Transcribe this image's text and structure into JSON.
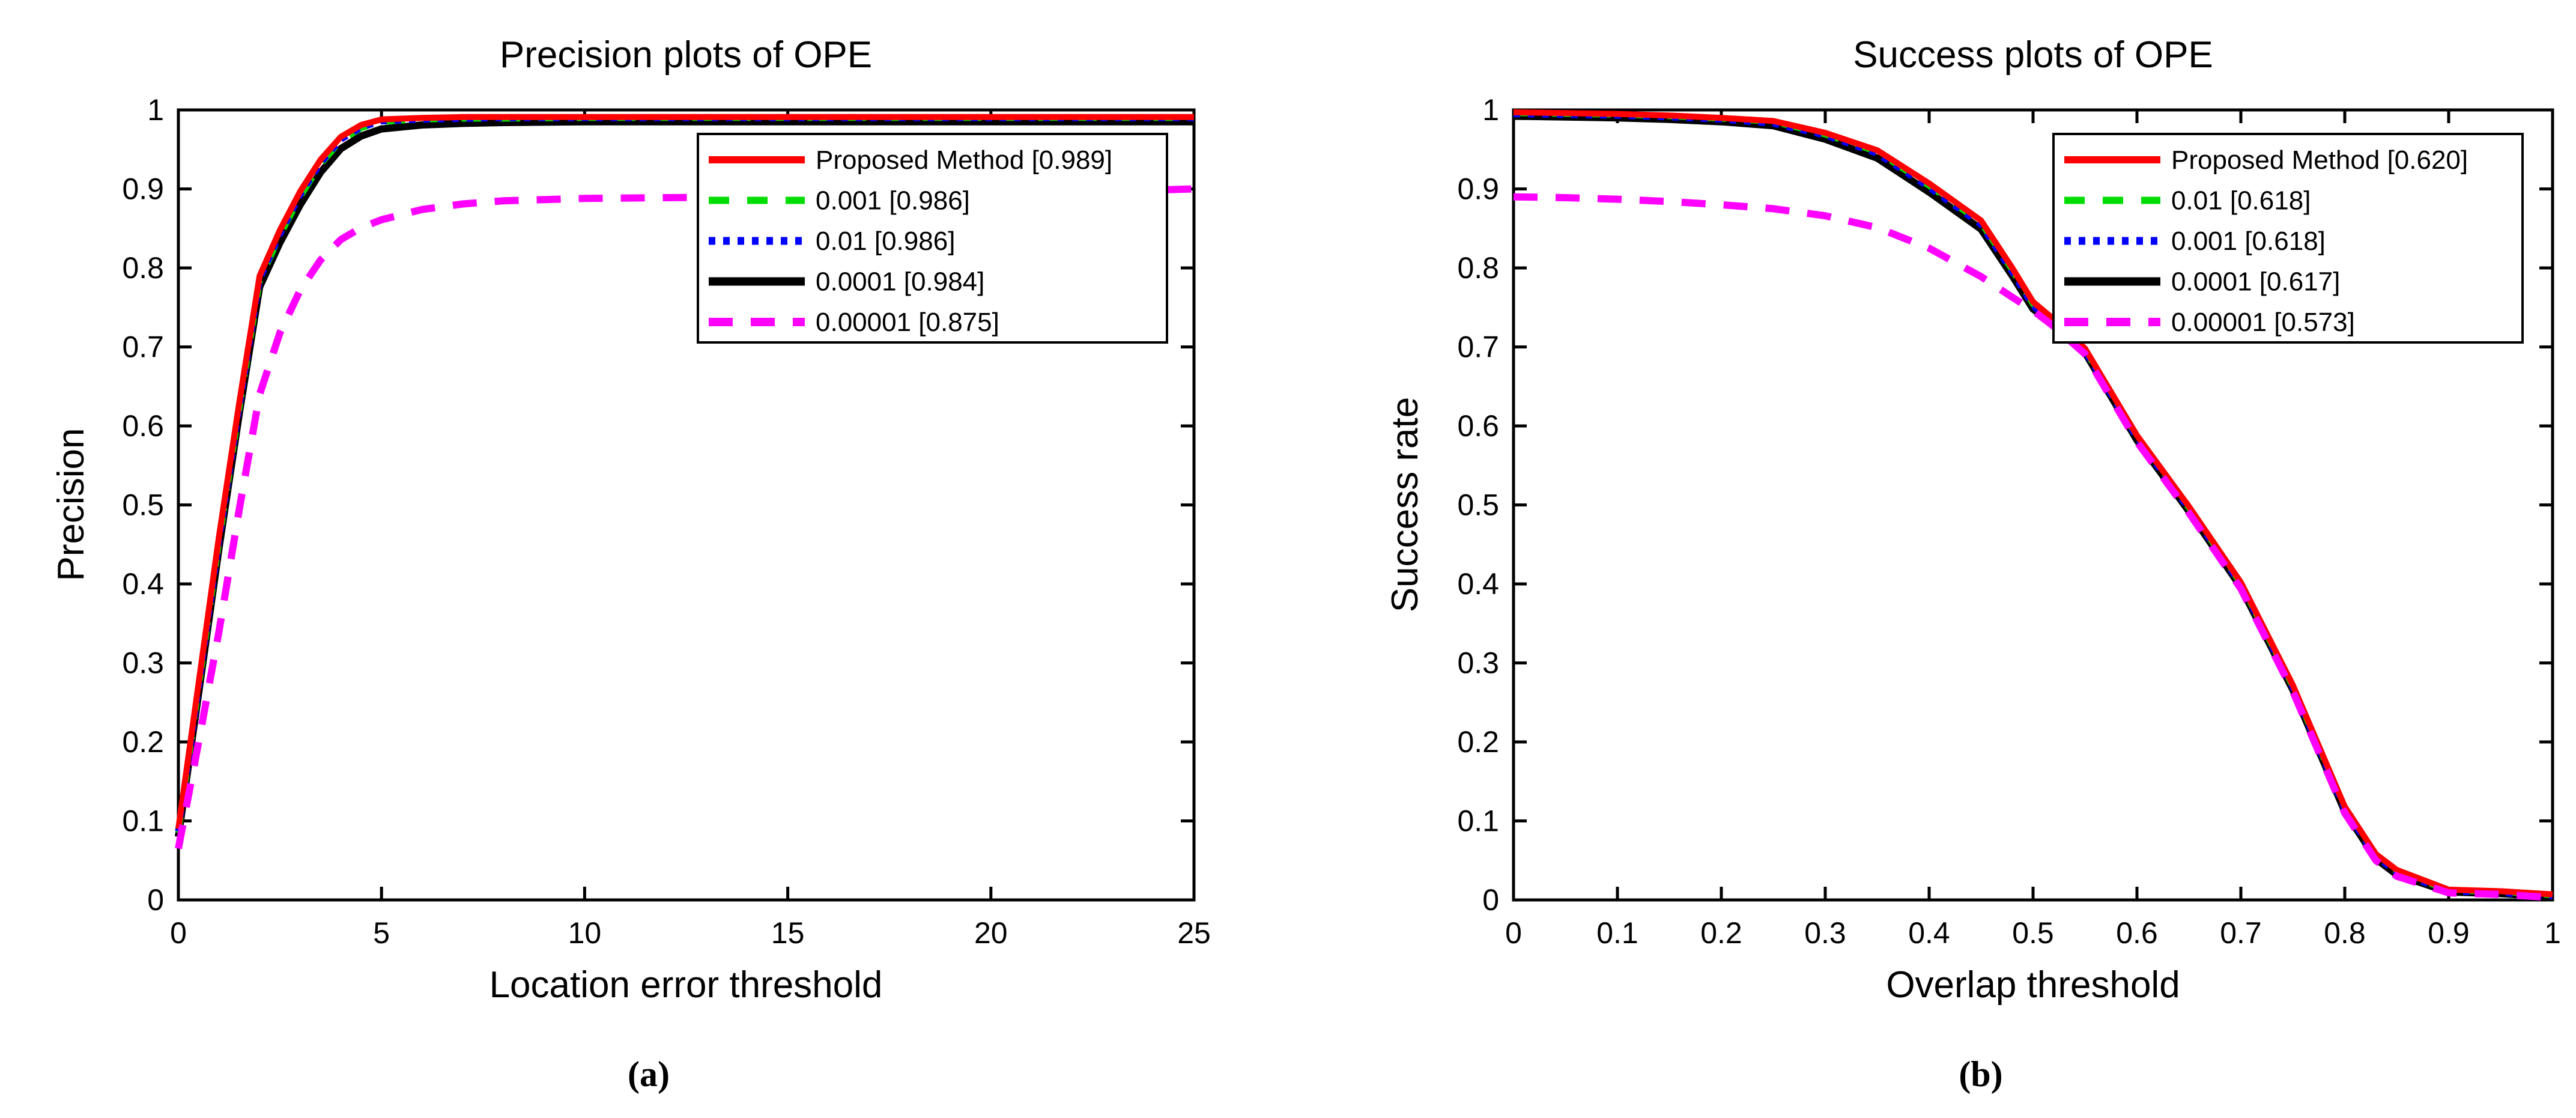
{
  "figure": {
    "background": "#ffffff",
    "captions": [
      "(a)",
      "(b)"
    ]
  },
  "colors": {
    "red": "#ff0000",
    "green": "#00dd00",
    "blue": "#0000ff",
    "black": "#000000",
    "magenta": "#ff00ff",
    "axis": "#000000"
  },
  "chart_data": [
    {
      "type": "line",
      "title": "Precision plots of OPE",
      "xlabel": "Location error threshold",
      "ylabel": "Precision",
      "xlim": [
        0,
        25
      ],
      "ylim": [
        0,
        1
      ],
      "xtick_labels": [
        "0",
        "5",
        "10",
        "15",
        "20",
        "25"
      ],
      "ytick_labels": [
        "0",
        "0.1",
        "0.2",
        "0.3",
        "0.4",
        "0.5",
        "0.6",
        "0.7",
        "0.8",
        "0.9",
        "1"
      ],
      "grid": false,
      "legend_position": "northeast",
      "x": [
        0,
        0.5,
        1,
        1.5,
        2,
        2.5,
        3,
        3.5,
        4,
        4.5,
        5,
        6,
        7,
        8,
        10,
        12,
        15,
        20,
        25
      ],
      "series": [
        {
          "name": "Proposed Method [0.989]",
          "color": "#ff0000",
          "style": "solid",
          "width": 10,
          "y": [
            0.09,
            0.275,
            0.46,
            0.63,
            0.79,
            0.848,
            0.897,
            0.937,
            0.966,
            0.981,
            0.988,
            0.99,
            0.991,
            0.991,
            0.991,
            0.991,
            0.991,
            0.991,
            0.991
          ]
        },
        {
          "name": "0.001 [0.986]",
          "color": "#00dd00",
          "style": "dashed",
          "width": 10,
          "y": [
            0.085,
            0.268,
            0.452,
            0.622,
            0.783,
            0.841,
            0.89,
            0.931,
            0.961,
            0.977,
            0.985,
            0.988,
            0.989,
            0.989,
            0.99,
            0.99,
            0.99,
            0.99,
            0.99
          ]
        },
        {
          "name": "0.01 [0.986]",
          "color": "#0000ff",
          "style": "dotted",
          "width": 11,
          "y": [
            0.087,
            0.27,
            0.455,
            0.625,
            0.786,
            0.843,
            0.893,
            0.933,
            0.963,
            0.978,
            0.986,
            0.988,
            0.989,
            0.99,
            0.99,
            0.99,
            0.99,
            0.99,
            0.99
          ]
        },
        {
          "name": "0.0001 [0.984]",
          "color": "#000000",
          "style": "solid",
          "width": 12,
          "y": [
            0.08,
            0.262,
            0.445,
            0.616,
            0.776,
            0.832,
            0.88,
            0.921,
            0.951,
            0.967,
            0.976,
            0.981,
            0.983,
            0.984,
            0.985,
            0.985,
            0.985,
            0.985,
            0.985
          ]
        },
        {
          "name": "0.00001 [0.875]",
          "color": "#ff00ff",
          "style": "longdash",
          "width": 12,
          "y": [
            0.065,
            0.2,
            0.34,
            0.495,
            0.64,
            0.718,
            0.772,
            0.81,
            0.836,
            0.851,
            0.861,
            0.874,
            0.881,
            0.885,
            0.888,
            0.889,
            0.89,
            0.893,
            0.9
          ]
        }
      ]
    },
    {
      "type": "line",
      "title": "Success plots of OPE",
      "xlabel": "Overlap threshold",
      "ylabel": "Success rate",
      "xlim": [
        0,
        1
      ],
      "ylim": [
        0,
        1
      ],
      "xtick_labels": [
        "0",
        "0.1",
        "0.2",
        "0.3",
        "0.4",
        "0.5",
        "0.6",
        "0.7",
        "0.8",
        "0.9",
        "1"
      ],
      "ytick_labels": [
        "0",
        "0.1",
        "0.2",
        "0.3",
        "0.4",
        "0.5",
        "0.6",
        "0.7",
        "0.8",
        "0.9",
        "1"
      ],
      "grid": false,
      "legend_position": "northeast",
      "x": [
        0,
        0.05,
        0.1,
        0.15,
        0.2,
        0.25,
        0.3,
        0.35,
        0.4,
        0.45,
        0.48,
        0.5,
        0.52,
        0.55,
        0.6,
        0.65,
        0.7,
        0.75,
        0.8,
        0.83,
        0.85,
        0.9,
        0.95,
        1.0
      ],
      "series": [
        {
          "name": "Proposed Method [0.620]",
          "color": "#ff0000",
          "style": "solid",
          "width": 10,
          "y": [
            0.997,
            0.996,
            0.995,
            0.993,
            0.99,
            0.986,
            0.971,
            0.949,
            0.907,
            0.86,
            0.8,
            0.757,
            0.735,
            0.698,
            0.588,
            0.498,
            0.402,
            0.272,
            0.118,
            0.058,
            0.038,
            0.013,
            0.011,
            0.007
          ]
        },
        {
          "name": "0.01 [0.618]",
          "color": "#00dd00",
          "style": "dashed",
          "width": 10,
          "y": [
            0.996,
            0.995,
            0.994,
            0.992,
            0.989,
            0.985,
            0.969,
            0.947,
            0.904,
            0.857,
            0.797,
            0.754,
            0.733,
            0.696,
            0.586,
            0.496,
            0.4,
            0.27,
            0.116,
            0.056,
            0.036,
            0.012,
            0.01,
            0.006
          ]
        },
        {
          "name": "0.001 [0.618]",
          "color": "#0000ff",
          "style": "dotted",
          "width": 11,
          "y": [
            0.995,
            0.994,
            0.993,
            0.991,
            0.988,
            0.983,
            0.968,
            0.945,
            0.902,
            0.855,
            0.795,
            0.752,
            0.731,
            0.695,
            0.585,
            0.495,
            0.399,
            0.269,
            0.115,
            0.055,
            0.035,
            0.011,
            0.009,
            0.005
          ]
        },
        {
          "name": "0.0001 [0.617]",
          "color": "#000000",
          "style": "solid",
          "width": 12,
          "y": [
            0.992,
            0.991,
            0.99,
            0.988,
            0.985,
            0.98,
            0.963,
            0.939,
            0.896,
            0.849,
            0.79,
            0.748,
            0.728,
            0.693,
            0.582,
            0.492,
            0.396,
            0.266,
            0.112,
            0.052,
            0.032,
            0.01,
            0.008,
            0.004
          ]
        },
        {
          "name": "0.00001 [0.573]",
          "color": "#ff00ff",
          "style": "longdash",
          "width": 12,
          "y": [
            0.89,
            0.889,
            0.887,
            0.884,
            0.88,
            0.875,
            0.866,
            0.851,
            0.825,
            0.789,
            0.763,
            0.746,
            0.726,
            0.691,
            0.58,
            0.49,
            0.394,
            0.264,
            0.11,
            0.05,
            0.03,
            0.009,
            0.007,
            0.003
          ]
        }
      ]
    }
  ]
}
